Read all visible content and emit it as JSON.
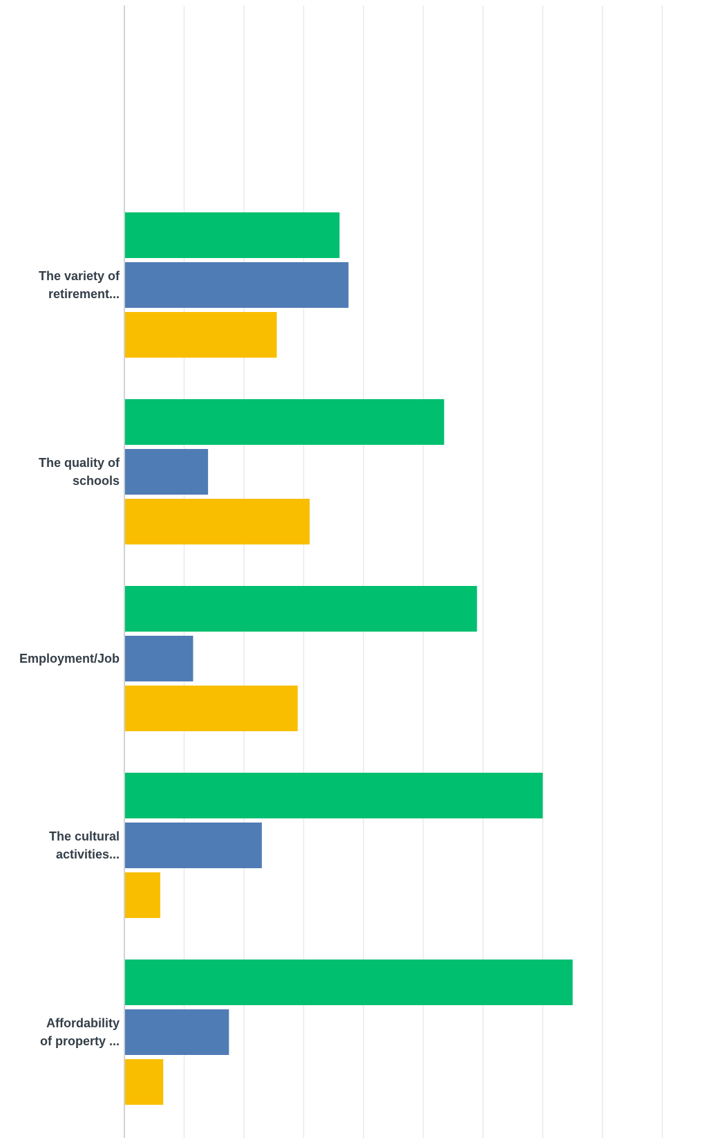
{
  "chart_data": {
    "type": "bar",
    "orientation": "horizontal",
    "title": "",
    "xlabel": "",
    "ylabel": "",
    "grid": true,
    "xlim": [
      0,
      100
    ],
    "categories": [
      [
        "The variety of",
        "retirement..."
      ],
      [
        "The quality of",
        "schools"
      ],
      [
        "Employment/Job"
      ],
      [
        "The cultural",
        "activities..."
      ],
      [
        "Affordability",
        "of property ..."
      ]
    ],
    "series": [
      {
        "color": "#00bf6f",
        "values": [
          36,
          53.5,
          59,
          70,
          75
        ]
      },
      {
        "color": "#507cb6",
        "values": [
          37.5,
          14,
          11.5,
          23,
          17.5
        ]
      },
      {
        "color": "#f9be00",
        "values": [
          25.5,
          31,
          29,
          6,
          6.5
        ]
      }
    ]
  }
}
